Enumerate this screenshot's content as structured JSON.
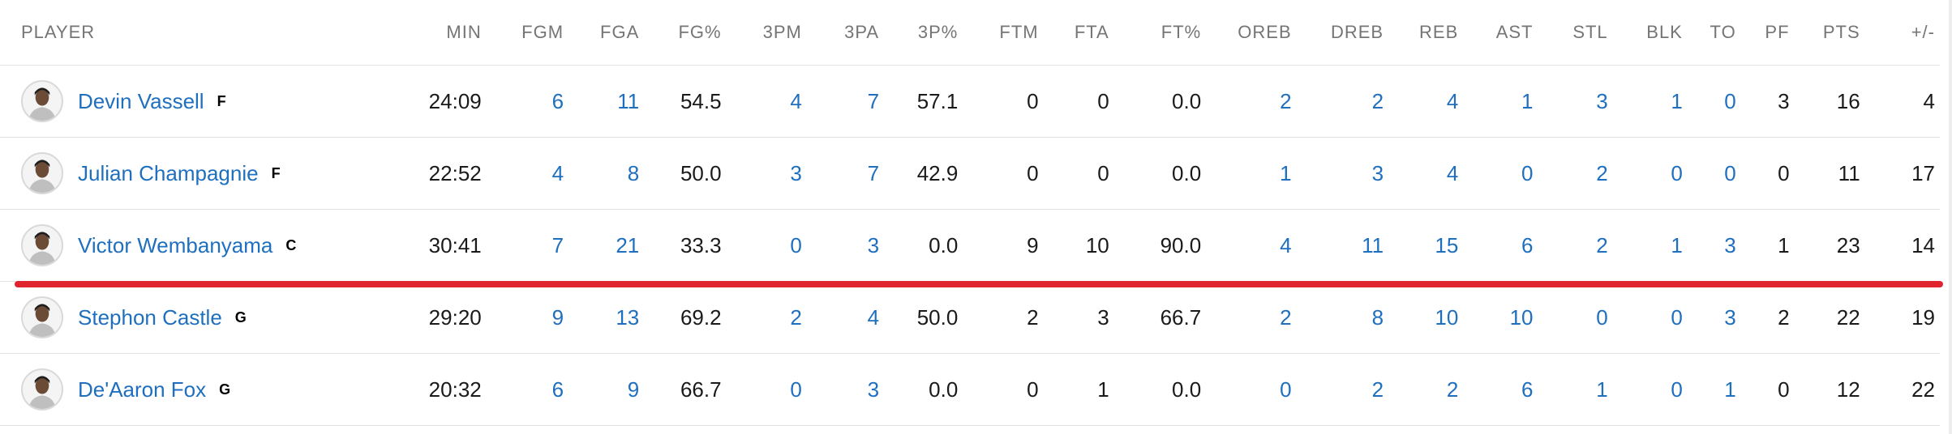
{
  "columns": [
    "PLAYER",
    "MIN",
    "FGM",
    "FGA",
    "FG%",
    "3PM",
    "3PA",
    "3P%",
    "FTM",
    "FTA",
    "FT%",
    "OREB",
    "DREB",
    "REB",
    "AST",
    "STL",
    "BLK",
    "TO",
    "PF",
    "PTS",
    "+/-"
  ],
  "colors": {
    "link": "#1f6fbf",
    "text": "#1a1a1a",
    "header": "#757575",
    "divider": "#e0242f",
    "border": "#e2e2e2"
  },
  "players": [
    {
      "name": "Devin Vassell",
      "pos": "F",
      "stats": [
        "24:09",
        "6",
        "11",
        "54.5",
        "4",
        "7",
        "57.1",
        "0",
        "0",
        "0.0",
        "2",
        "2",
        "4",
        "1",
        "3",
        "1",
        "0",
        "3",
        "16",
        "4"
      ]
    },
    {
      "name": "Julian Champagnie",
      "pos": "F",
      "stats": [
        "22:52",
        "4",
        "8",
        "50.0",
        "3",
        "7",
        "42.9",
        "0",
        "0",
        "0.0",
        "1",
        "3",
        "4",
        "0",
        "2",
        "0",
        "0",
        "0",
        "11",
        "17"
      ]
    },
    {
      "name": "Victor Wembanyama",
      "pos": "C",
      "stats": [
        "30:41",
        "7",
        "21",
        "33.3",
        "0",
        "3",
        "0.0",
        "9",
        "10",
        "90.0",
        "4",
        "11",
        "15",
        "6",
        "2",
        "1",
        "3",
        "1",
        "23",
        "14"
      ]
    },
    {
      "name": "Stephon Castle",
      "pos": "G",
      "stats": [
        "29:20",
        "9",
        "13",
        "69.2",
        "2",
        "4",
        "50.0",
        "2",
        "3",
        "66.7",
        "2",
        "8",
        "10",
        "10",
        "0",
        "0",
        "3",
        "2",
        "22",
        "19"
      ]
    },
    {
      "name": "De'Aaron Fox",
      "pos": "G",
      "stats": [
        "20:32",
        "6",
        "9",
        "66.7",
        "0",
        "3",
        "0.0",
        "0",
        "1",
        "0.0",
        "0",
        "2",
        "2",
        "6",
        "1",
        "0",
        "1",
        "0",
        "12",
        "22"
      ]
    }
  ]
}
